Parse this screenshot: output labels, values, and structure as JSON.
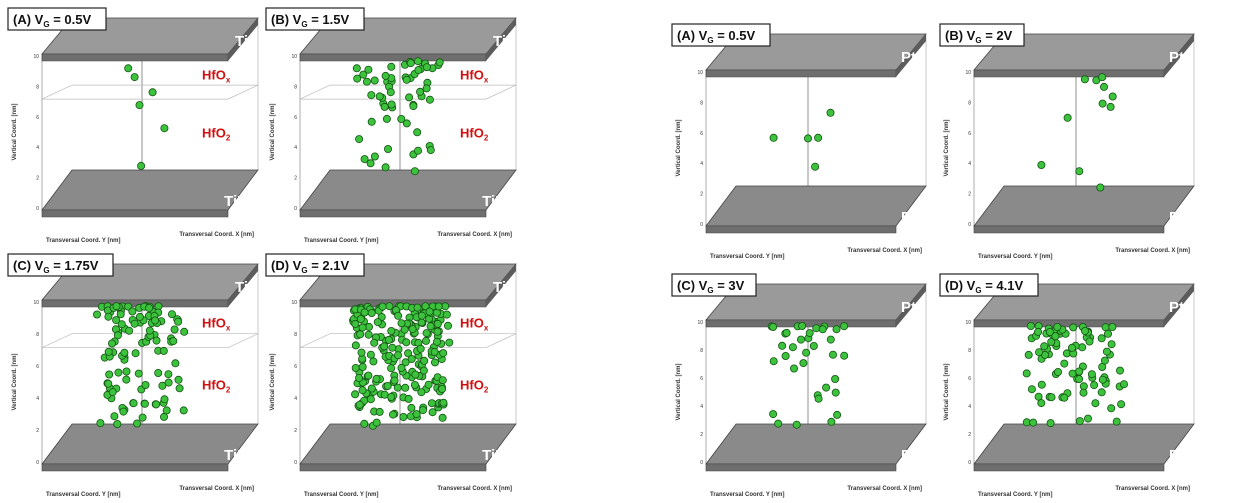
{
  "figures": [
    {
      "name": "ti-tin",
      "panels": [
        {
          "tag": "(A) V",
          "sub": "G",
          "val": " = 0.5V",
          "top_metal": "Ti",
          "bottom_metal": "TiN",
          "layers": [
            {
              "main": "HfO",
              "sub": "x"
            },
            {
              "main": "HfO",
              "sub": "2"
            }
          ],
          "ylabel": "Vertical Coord. [nm]",
          "xlabel_left": "Transversal Coord. Y [nm]",
          "xlabel_right": "Transversal Coord. X [nm]",
          "ytick": [
            "10",
            "8",
            "6",
            "4",
            "2",
            "0"
          ],
          "density": 6,
          "seed": 11,
          "spread": 0.15
        },
        {
          "tag": "(B) V",
          "sub": "G",
          "val": " = 1.5V",
          "top_metal": "Ti",
          "bottom_metal": "TiN",
          "layers": [
            {
              "main": "HfO",
              "sub": "x"
            },
            {
              "main": "HfO",
              "sub": "2"
            }
          ],
          "ylabel": "Vertical Coord. [nm]",
          "xlabel_left": "Transversal Coord. Y [nm]",
          "xlabel_right": "Transversal Coord. X [nm]",
          "ytick": [
            "10",
            "8",
            "6",
            "4",
            "2",
            "0"
          ],
          "density": 60,
          "seed": 23,
          "spread": 0.5
        },
        {
          "tag": "(C) V",
          "sub": "G",
          "val": " = 1.75V",
          "top_metal": "Ti",
          "bottom_metal": "TiN",
          "layers": [
            {
              "main": "HfO",
              "sub": "x"
            },
            {
              "main": "HfO",
              "sub": "2"
            }
          ],
          "ylabel": "Vertical Coord. [nm]",
          "xlabel_left": "Transversal Coord. Y [nm]",
          "xlabel_right": "Transversal Coord. X [nm]",
          "ytick": [
            "10",
            "8",
            "6",
            "4",
            "2",
            "0"
          ],
          "density": 110,
          "seed": 37,
          "spread": 0.55
        },
        {
          "tag": "(D) V",
          "sub": "G",
          "val": " = 2.1V",
          "top_metal": "Ti",
          "bottom_metal": "TiN",
          "layers": [
            {
              "main": "HfO",
              "sub": "x"
            },
            {
              "main": "HfO",
              "sub": "2"
            }
          ],
          "ylabel": "Vertical Coord. [nm]",
          "xlabel_left": "Transversal Coord. Y [nm]",
          "xlabel_right": "Transversal Coord. X [nm]",
          "ytick": [
            "10",
            "8",
            "6",
            "4",
            "2",
            "0"
          ],
          "density": 230,
          "seed": 51,
          "spread": 0.7
        }
      ]
    },
    {
      "name": "pt-pt",
      "panels": [
        {
          "tag": "(A) V",
          "sub": "G",
          "val": " = 0.5V",
          "top_metal": "Pt",
          "bottom_metal": "Pt",
          "layers": [],
          "ylabel": "Vertical Coord. [nm]",
          "xlabel_left": "Transversal Coord. Y [nm]",
          "xlabel_right": "Transversal Coord. X [nm]",
          "ytick": [
            "10",
            "8",
            "6",
            "4",
            "2",
            "0"
          ],
          "density": 5,
          "seed": 61,
          "spread": 0.35
        },
        {
          "tag": "(B) V",
          "sub": "G",
          "val": " = 2V",
          "top_metal": "Pt",
          "bottom_metal": "Pt",
          "layers": [],
          "ylabel": "Vertical Coord. [nm]",
          "xlabel_left": "Transversal Coord. Y [nm]",
          "xlabel_right": "Transversal Coord. X [nm]",
          "ytick": [
            "10",
            "8",
            "6",
            "4",
            "2",
            "0"
          ],
          "density": 11,
          "seed": 73,
          "spread": 0.55
        },
        {
          "tag": "(C) V",
          "sub": "G",
          "val": " = 3V",
          "top_metal": "Pt",
          "bottom_metal": "Pt",
          "layers": [],
          "ylabel": "Vertical Coord. [nm]",
          "xlabel_left": "Transversal Coord. Y [nm]",
          "xlabel_right": "Transversal Coord. X [nm]",
          "ytick": [
            "10",
            "8",
            "6",
            "4",
            "2",
            "0"
          ],
          "density": 35,
          "seed": 83,
          "spread": 0.6
        },
        {
          "tag": "(D) V",
          "sub": "G",
          "val": " = 4.1V",
          "top_metal": "Pt",
          "bottom_metal": "Pt",
          "layers": [],
          "ylabel": "Vertical Coord. [nm]",
          "xlabel_left": "Transversal Coord. Y [nm]",
          "xlabel_right": "Transversal Coord. X [nm]",
          "ytick": [
            "10",
            "8",
            "6",
            "4",
            "2",
            "0"
          ],
          "density": 90,
          "seed": 97,
          "spread": 0.75
        }
      ]
    }
  ],
  "colors": {
    "plate_fill": "#8a8a8a",
    "plate_side": "#6e6e6e",
    "particle": "#3cc23c",
    "particle_edge": "#145214",
    "layer_text": "#d01010",
    "metal_text": "#ffffff"
  }
}
